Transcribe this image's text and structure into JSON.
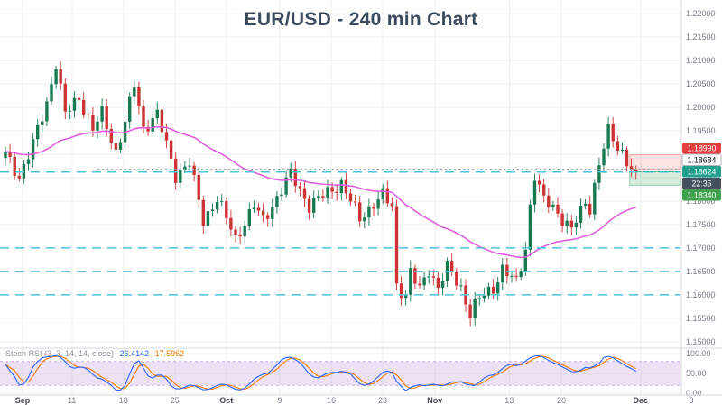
{
  "chart_data": {
    "type": "candlestick",
    "symbol_title": "EUR/USD - 240 min Chart",
    "timeframe_minutes": 240,
    "n_bars": 138,
    "y_axis": {
      "min": 1.15,
      "max": 1.22,
      "tick_step": 0.005,
      "ticks": [
        1.22,
        1.215,
        1.21,
        1.205,
        1.2,
        1.195,
        1.19,
        1.185,
        1.18,
        1.175,
        1.17,
        1.165,
        1.16,
        1.155,
        1.15
      ]
    },
    "x_labels": [
      {
        "label": "Sep",
        "pos": 0.028
      },
      {
        "label": "11",
        "pos": 0.101
      },
      {
        "label": "18",
        "pos": 0.177
      },
      {
        "label": "25",
        "pos": 0.253
      },
      {
        "label": "Oct",
        "pos": 0.329
      },
      {
        "label": "9",
        "pos": 0.408
      },
      {
        "label": "16",
        "pos": 0.484
      },
      {
        "label": "23",
        "pos": 0.56
      },
      {
        "label": "Nov",
        "pos": 0.637
      },
      {
        "label": "13",
        "pos": 0.747
      },
      {
        "label": "20",
        "pos": 0.824
      },
      {
        "label": "Dec",
        "pos": 0.941
      },
      {
        "label": "8",
        "pos": 1.016
      }
    ],
    "price_waypoints": [
      [
        0,
        1.19
      ],
      [
        3,
        1.1852
      ],
      [
        6,
        1.1922
      ],
      [
        9,
        1.201
      ],
      [
        11,
        1.2095
      ],
      [
        13,
        1.1985
      ],
      [
        16,
        1.2022
      ],
      [
        19,
        1.1952
      ],
      [
        21,
        1.1988
      ],
      [
        24,
        1.1905
      ],
      [
        26,
        1.1968
      ],
      [
        28,
        1.2048
      ],
      [
        30,
        1.1955
      ],
      [
        33,
        1.1985
      ],
      [
        37,
        1.1855
      ],
      [
        40,
        1.1882
      ],
      [
        43,
        1.1758
      ],
      [
        46,
        1.1806
      ],
      [
        50,
        1.172
      ],
      [
        54,
        1.179
      ],
      [
        56,
        1.1758
      ],
      [
        62,
        1.1858
      ],
      [
        66,
        1.179
      ],
      [
        69,
        1.1812
      ],
      [
        73,
        1.1838
      ],
      [
        77,
        1.1762
      ],
      [
        80,
        1.1795
      ],
      [
        82,
        1.1812
      ],
      [
        84,
        1.1788
      ],
      [
        85,
        1.162
      ],
      [
        87,
        1.16
      ],
      [
        88,
        1.1648
      ],
      [
        90,
        1.161
      ],
      [
        92,
        1.1655
      ],
      [
        94,
        1.1615
      ],
      [
        96,
        1.1658
      ],
      [
        99,
        1.1615
      ],
      [
        101,
        1.156
      ],
      [
        103,
        1.1592
      ],
      [
        106,
        1.1615
      ],
      [
        108,
        1.1655
      ],
      [
        111,
        1.1625
      ],
      [
        113,
        1.17
      ],
      [
        114,
        1.179
      ],
      [
        115,
        1.1855
      ],
      [
        117,
        1.18
      ],
      [
        119,
        1.1788
      ],
      [
        123,
        1.1738
      ],
      [
        126,
        1.1798
      ],
      [
        127,
        1.1786
      ],
      [
        129,
        1.188
      ],
      [
        131,
        1.1948
      ],
      [
        133,
        1.1915
      ],
      [
        134,
        1.1905
      ],
      [
        136,
        1.1868
      ],
      [
        137,
        1.18624
      ]
    ],
    "ma": {
      "type": "ema",
      "period": 45
    },
    "levels_dashed": [
      1.1862,
      1.17,
      1.165,
      1.16
    ],
    "alert_line": 1.18684,
    "current_price": 1.18624,
    "countdown": "22:35",
    "zones": {
      "resistance": {
        "top": 1.1899,
        "bottom": 1.18684
      },
      "support": {
        "top": 1.18624,
        "bottom": 1.1834
      },
      "x_start_frac": 0.925
    },
    "badges": [
      {
        "text": "1.18990",
        "price": 1.1899,
        "style": "red"
      },
      {
        "text": "1.18684",
        "price": 1.18684,
        "style": "neutral"
      },
      {
        "text": "1.18624",
        "price": 1.18624,
        "style": "current"
      },
      {
        "text": "22:35",
        "price": 1.18624,
        "style": "countdown",
        "row_offset": 1
      },
      {
        "text": "1.18340",
        "price": 1.1834,
        "style": "green"
      }
    ],
    "stoch_rsi": {
      "label": "Stoch RSI (3, 3, 14, 14, close)",
      "k_value": "26.4142",
      "d_value": "17.5962",
      "ticks": [
        100,
        50,
        0
      ],
      "band": [
        20,
        80
      ],
      "k_period": 14,
      "smooth": 3
    },
    "colors": {
      "up": "#177a50",
      "down": "#cc3333",
      "ma": "#df5fdf",
      "level": "#4cc4da",
      "grid": "#efefef",
      "axis_line": "#d7d9de",
      "axis_text": "#787b86",
      "title": "#3b4a5c",
      "stoch_k": "#2962ff",
      "stoch_d": "#f57c00",
      "stoch_band": "rgba(150,90,200,0.18)",
      "stoch_band_border": "#c9a6e0",
      "zone_red_fill": "rgba(234,80,80,0.16)",
      "zone_red_border": "rgba(234,80,80,0.45)",
      "zone_green_fill": "rgba(60,160,90,0.20)",
      "zone_green_border": "rgba(60,160,90,0.50)",
      "badge_red": "#e23f3f",
      "badge_green": "#3fa34d",
      "badge_current": "#22a08f",
      "badge_countdown": "#44505e"
    }
  }
}
